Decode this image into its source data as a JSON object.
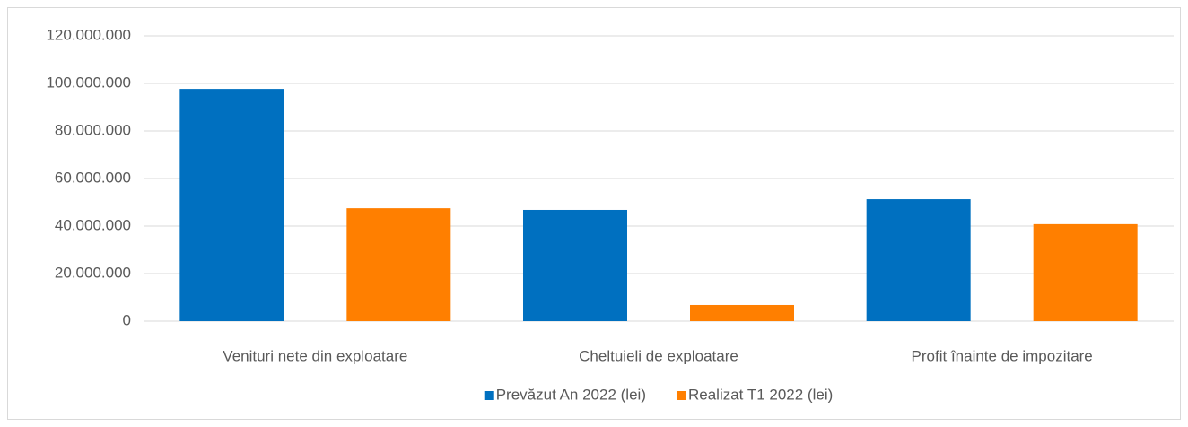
{
  "chart_data": {
    "type": "bar",
    "categories": [
      "Venituri nete din exploatare",
      "Cheltuieli de exploatare",
      "Profit înainte de impozitare"
    ],
    "series": [
      {
        "name": "Prevăzut An 2022 (lei)",
        "color": "#0070c0",
        "values": [
          97700000,
          46800000,
          51300000
        ]
      },
      {
        "name": "Realizat T1 2022 (lei)",
        "color": "#ff7f00",
        "values": [
          47500000,
          6800000,
          40800000
        ]
      }
    ],
    "ylim": [
      0,
      120000000
    ],
    "yticks": [
      0,
      {
        "value": 20000000,
        "label": "20.000.000"
      },
      {
        "value": 40000000,
        "label": "40.000.000"
      },
      {
        "value": 60000000,
        "label": "60.000.000"
      },
      {
        "value": 80000000,
        "label": "80.000.000"
      },
      {
        "value": 100000000,
        "label": "100.000.000"
      },
      {
        "value": 120000000,
        "label": "120.000.000"
      }
    ],
    "grid": true,
    "legend": "bottom"
  }
}
